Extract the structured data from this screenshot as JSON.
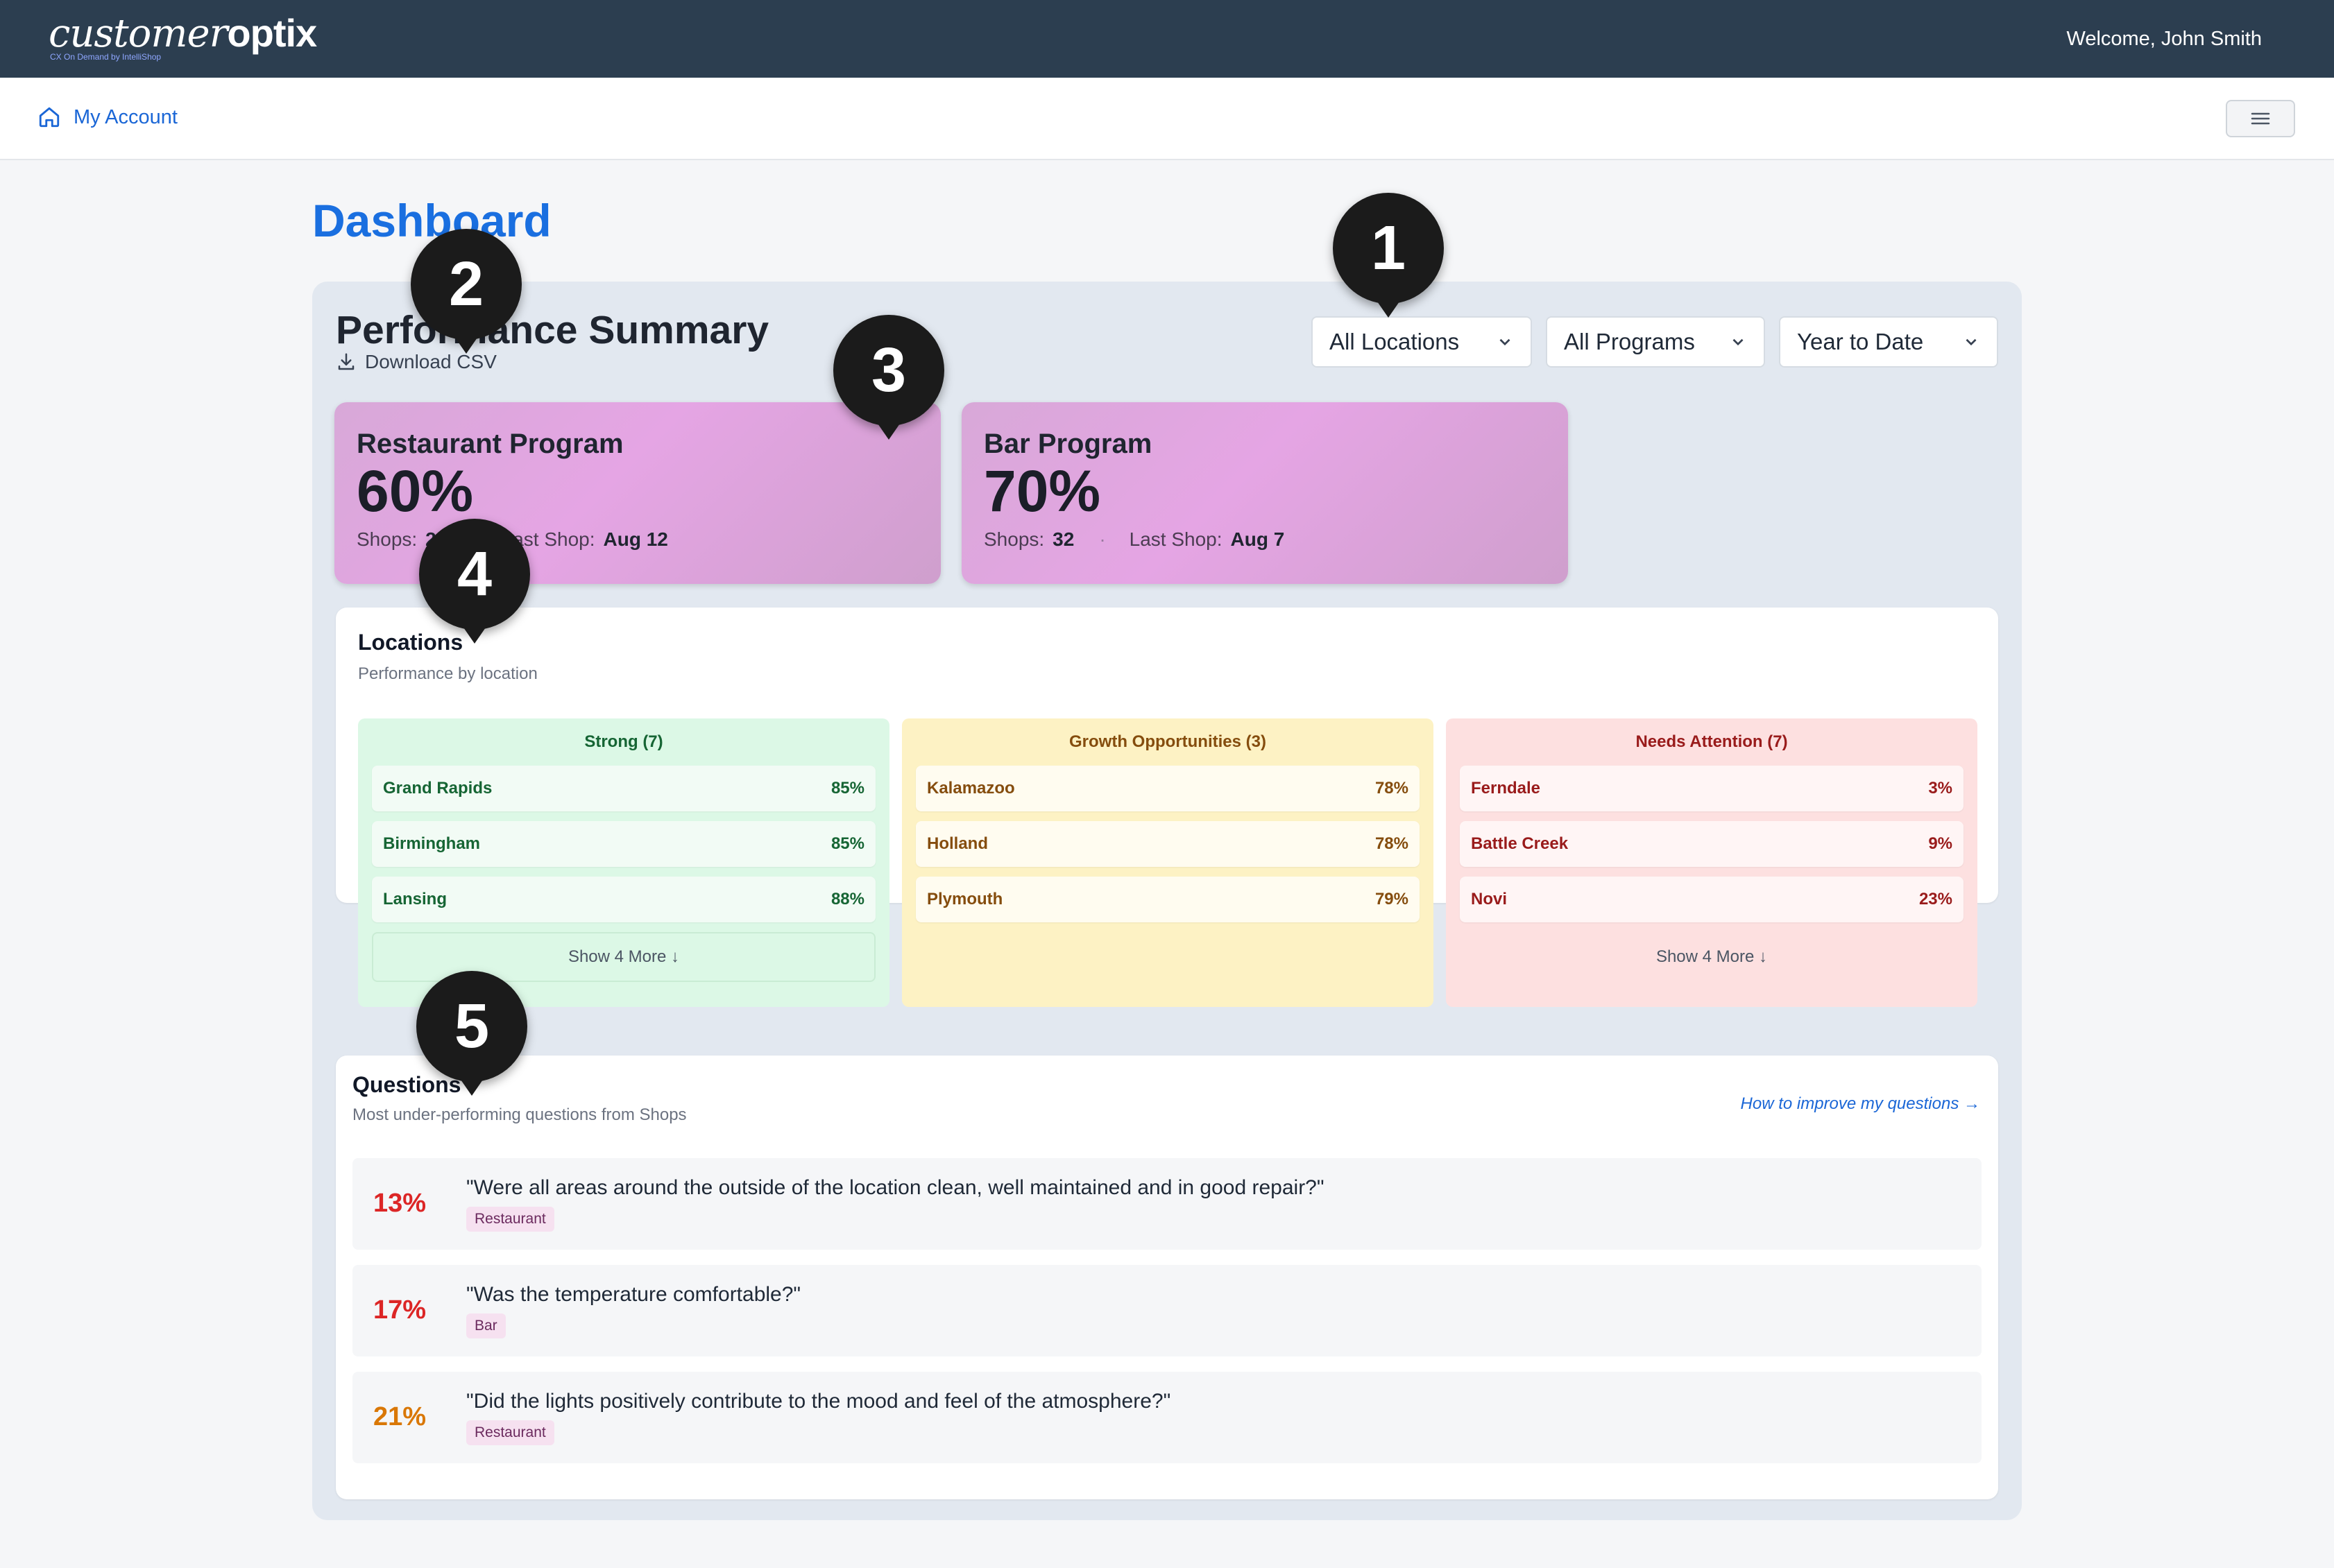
{
  "brand": {
    "logo_light": "customer",
    "logo_bold": "optix",
    "tagline": "CX On Demand by IntelliShop"
  },
  "header": {
    "welcome": "Welcome, John Smith"
  },
  "account_bar": {
    "my_account": "My Account",
    "icons": {
      "home": "home-icon",
      "menu": "hamburger-menu-icon"
    }
  },
  "page": {
    "title": "Dashboard"
  },
  "summary": {
    "title": "Performance Summary",
    "download_label": "Download CSV",
    "filters": [
      {
        "value": "All Locations"
      },
      {
        "value": "All Programs"
      },
      {
        "value": "Year to Date"
      }
    ]
  },
  "programs": [
    {
      "name": "Restaurant Program",
      "score": "60%",
      "shops_label": "Shops:",
      "shops": "20",
      "last_shop_label": "Last Shop:",
      "last_shop": "Aug 12"
    },
    {
      "name": "Bar Program",
      "score": "70%",
      "shops_label": "Shops:",
      "shops": "32",
      "last_shop_label": "Last Shop:",
      "last_shop": "Aug 7"
    }
  ],
  "locations": {
    "title": "Locations",
    "subtitle": "Performance by location",
    "groups": [
      {
        "title": "Strong (7)",
        "show_more": "Show 4 More ↓",
        "items": [
          {
            "name": "Grand Rapids",
            "value": "85%"
          },
          {
            "name": "Birmingham",
            "value": "85%"
          },
          {
            "name": "Lansing",
            "value": "88%"
          }
        ]
      },
      {
        "title": "Growth Opportunities (3)",
        "items": [
          {
            "name": "Kalamazoo",
            "value": "78%"
          },
          {
            "name": "Holland",
            "value": "78%"
          },
          {
            "name": "Plymouth",
            "value": "79%"
          }
        ]
      },
      {
        "title": "Needs Attention (7)",
        "show_more": "Show 4 More ↓",
        "items": [
          {
            "name": "Ferndale",
            "value": "3%"
          },
          {
            "name": "Battle Creek",
            "value": "9%"
          },
          {
            "name": "Novi",
            "value": "23%"
          }
        ]
      }
    ]
  },
  "questions": {
    "title": "Questions",
    "subtitle": "Most under-performing questions from Shops",
    "improve_link": "How to improve my questions →",
    "items": [
      {
        "pct": "13%",
        "text": "\"Were all areas around the outside of the location clean, well maintained and in good repair?\"",
        "tag": "Restaurant",
        "color": "#dc2626"
      },
      {
        "pct": "17%",
        "text": "\"Was the temperature comfortable?\"",
        "tag": "Bar",
        "color": "#dc2626"
      },
      {
        "pct": "21%",
        "text": "\"Did the lights positively contribute to the mood and feel of the atmosphere?\"",
        "tag": "Restaurant",
        "color": "#d97706"
      }
    ]
  },
  "callouts": [
    "1",
    "2",
    "3",
    "4",
    "5"
  ],
  "colors": {
    "topbar": "#2c3e50",
    "accent": "#1a6fe0",
    "link": "#1a66d6",
    "strong": "#166534",
    "growth": "#854d0e",
    "needs": "#991b1b"
  }
}
